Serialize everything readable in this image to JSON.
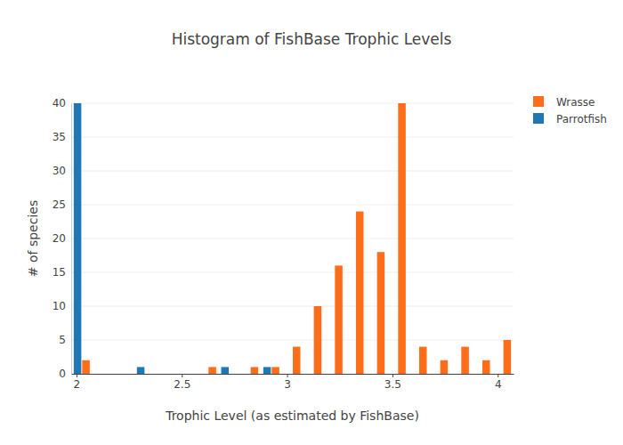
{
  "chart_data": {
    "type": "histogram",
    "title": "Histogram of FishBase Trophic Levels",
    "x_label": "Trophic Level (as estimated by FishBase)",
    "y_label": "# of species",
    "bins": [
      1.975,
      2.075,
      2.175,
      2.275,
      2.375,
      2.475,
      2.575,
      2.675,
      2.775,
      2.875,
      2.975,
      3.075,
      3.175,
      3.275,
      3.375,
      3.475,
      3.575,
      3.675,
      3.775,
      3.875,
      3.975,
      4.075
    ],
    "series": [
      {
        "name": "Wrasse",
        "color": "#ff6c1a",
        "values": [
          2,
          0,
          0,
          0,
          0,
          0,
          1,
          0,
          1,
          1,
          4,
          10,
          16,
          24,
          18,
          40,
          4,
          2,
          4,
          2,
          5
        ]
      },
      {
        "name": "Parrotfish",
        "color": "#1f77b4",
        "values": [
          40,
          0,
          0,
          1,
          0,
          0,
          0,
          1,
          0,
          1,
          0,
          0,
          0,
          0,
          0,
          0,
          0,
          0,
          0,
          0,
          0
        ]
      }
    ],
    "xlim": [
      1.975,
      4.075
    ],
    "xticks": [
      2,
      2.5,
      3,
      3.5,
      4
    ],
    "ylim": [
      0,
      40
    ],
    "yticks": [
      0,
      5,
      10,
      15,
      20,
      25,
      30,
      35,
      40
    ],
    "grid": true,
    "legend": "top-right"
  }
}
